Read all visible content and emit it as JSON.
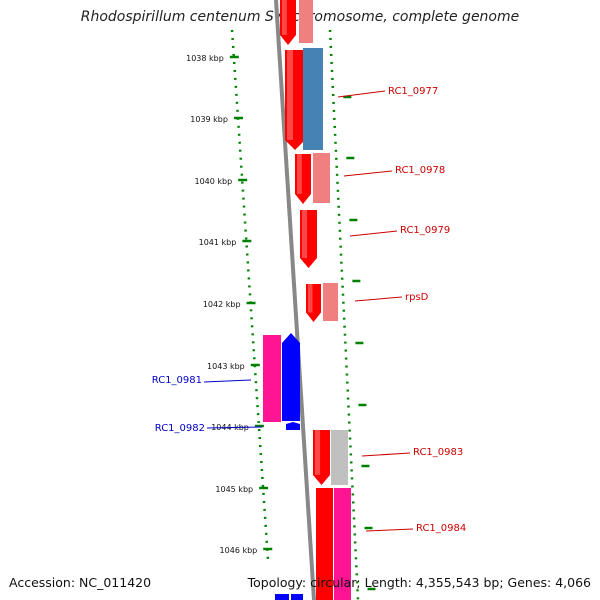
{
  "title": "Rhodospirillum centenum SW chromosome, complete genome",
  "footer": {
    "accession": "Accession: NC_011420",
    "stats": "Topology: circular; Length: 4,355,543 bp; Genes: 4,066"
  },
  "colors": {
    "gene_red": "#ff0000",
    "gene_pink": "#f08080",
    "gene_blue": "#0000ff",
    "gene_steelblue": "#4682b4",
    "gene_magenta": "#ff1493",
    "gene_gray": "#c0c0c0",
    "tick_green": "#008000",
    "backbone": "#888888",
    "label_red": "#cc0000",
    "label_blue": "#0000cc"
  },
  "ticks": [
    "1038 kbp",
    "1039 kbp",
    "1040 kbp",
    "1041 kbp",
    "1042 kbp",
    "1043 kbp",
    "1044 kbp",
    "1045 kbp",
    "1046 kbp"
  ],
  "gene_labels": [
    {
      "text": "RC1_0977",
      "strand": "+"
    },
    {
      "text": "RC1_0978",
      "strand": "+"
    },
    {
      "text": "RC1_0979",
      "strand": "+"
    },
    {
      "text": "rpsD",
      "strand": "+"
    },
    {
      "text": "RC1_0981",
      "strand": "-"
    },
    {
      "text": "RC1_0982",
      "strand": "-"
    },
    {
      "text": "RC1_0983",
      "strand": "+"
    },
    {
      "text": "RC1_0984",
      "strand": "+"
    }
  ]
}
